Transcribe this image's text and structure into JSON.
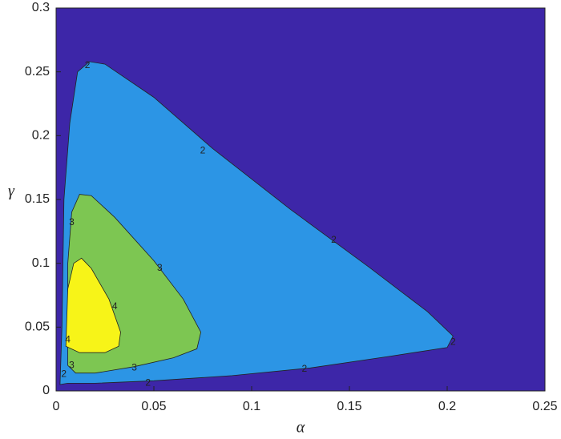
{
  "chart_data": {
    "type": "contour",
    "xlabel": "α",
    "ylabel": "γ",
    "xlim": [
      0,
      0.25
    ],
    "ylim": [
      0,
      0.3
    ],
    "xticks": [
      0,
      0.05,
      0.1,
      0.15,
      0.2,
      0.25
    ],
    "yticks": [
      0,
      0.05,
      0.1,
      0.15,
      0.2,
      0.25,
      0.3
    ],
    "background_color": "#3d26a8",
    "levels": [
      2,
      3,
      4
    ],
    "colors": [
      "#2c95e5",
      "#7dc652",
      "#f7f418"
    ]
  }
}
